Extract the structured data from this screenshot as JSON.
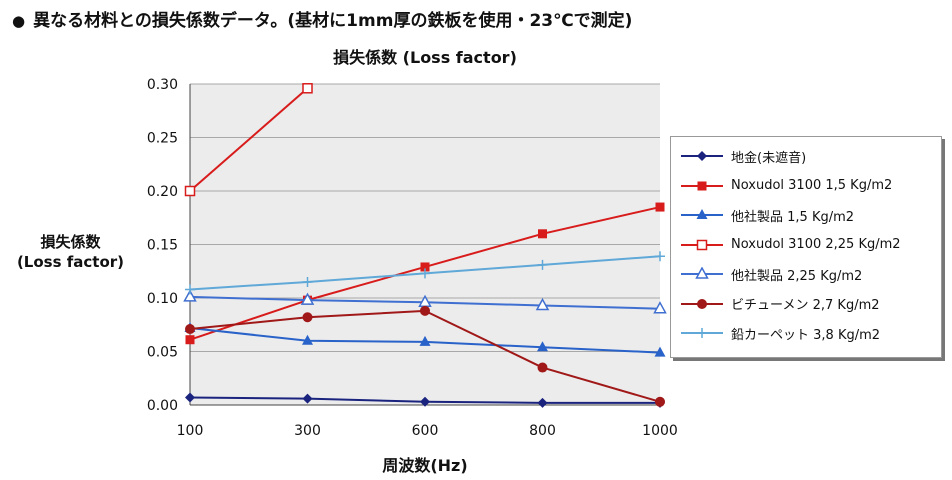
{
  "header": {
    "bullet": "●",
    "text": "異なる材料との損失係数データ。(基材に1mm厚の鉄板を使用・23℃で測定)"
  },
  "chart_data": {
    "type": "line",
    "title": "損失係数 (Loss factor)",
    "ylabel_line1": "損失係数",
    "ylabel_line2": "(Loss factor)",
    "xlabel": "周波数(Hz)",
    "categories": [
      "100",
      "300",
      "600",
      "800",
      "1000"
    ],
    "ylim": [
      0,
      0.3
    ],
    "yticks": [
      "0.00",
      "0.05",
      "0.10",
      "0.15",
      "0.20",
      "0.25",
      "0.30"
    ],
    "grid": true,
    "legend_position": "right",
    "series": [
      {
        "name": "地金(未遮音)",
        "color": "#1a237e",
        "marker": "diamond",
        "values": [
          0.007,
          0.006,
          0.003,
          0.002,
          0.002
        ]
      },
      {
        "name": "Noxudol 3100 1,5 Kg/m2",
        "color": "#d81b1b",
        "marker": "square",
        "values": [
          0.061,
          0.098,
          0.129,
          0.16,
          0.185
        ]
      },
      {
        "name": "他社製品 1,5 Kg/m2",
        "color": "#2962c9",
        "marker": "triangle",
        "values": [
          0.072,
          0.06,
          0.059,
          0.054,
          0.049
        ]
      },
      {
        "name": "Noxudol 3100 2,25 Kg/m2",
        "color": "#d81b1b",
        "marker": "square-open",
        "values": [
          0.2,
          0.296,
          null,
          null,
          null
        ]
      },
      {
        "name": "他社製品 2,25 Kg/m2",
        "color": "#3f6fd0",
        "marker": "triangle-open",
        "values": [
          0.101,
          0.098,
          0.096,
          0.093,
          0.09
        ]
      },
      {
        "name": "ビチューメン 2,7 Kg/m2",
        "color": "#a01818",
        "marker": "circle",
        "values": [
          0.071,
          0.082,
          0.088,
          0.035,
          0.003
        ]
      },
      {
        "name": "鉛カーペット 3,8 Kg/m2",
        "color": "#5fa8d8",
        "marker": "plus",
        "values": [
          0.108,
          0.115,
          0.123,
          0.131,
          0.139
        ]
      }
    ]
  }
}
